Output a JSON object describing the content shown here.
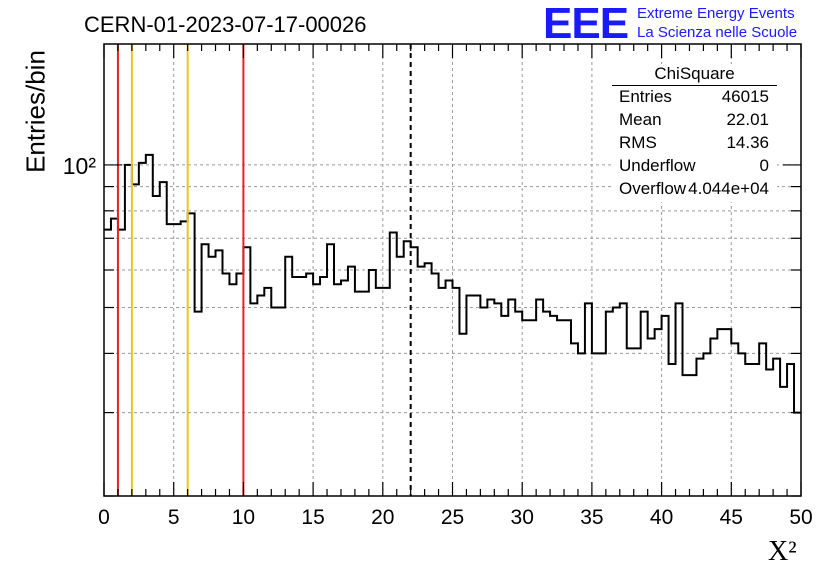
{
  "header": {
    "title": "CERN-01-2023-07-17-00026",
    "logo": "EEE",
    "logo_line1": "Extreme Energy Events",
    "logo_line2": "La Scienza nelle Scuole"
  },
  "stats_box": {
    "name": "ChiSquare",
    "rows": [
      {
        "label": "Entries",
        "value": "46015"
      },
      {
        "label": "Mean",
        "value": "22.01"
      },
      {
        "label": "RMS",
        "value": "14.36"
      },
      {
        "label": "Underflow",
        "value": "0"
      },
      {
        "label": "Overflow",
        "value": "4.044e+04"
      }
    ]
  },
  "colors": {
    "histogram": "#000000",
    "red_line": "#e8221b",
    "yellow_line": "#f2c020",
    "mean_line": "#000000",
    "grid": "#9a9a9a",
    "logo": "#1a1aff"
  },
  "chart_data": {
    "type": "bar",
    "style": "step-histogram",
    "xlabel": "X²",
    "ylabel": "Entries/bin",
    "xlim": [
      0,
      50
    ],
    "ylim": [
      20,
      180
    ],
    "ylog": true,
    "grid": true,
    "xticks": [
      "0",
      "5",
      "10",
      "15",
      "20",
      "25",
      "30",
      "35",
      "40",
      "45",
      "50"
    ],
    "ytick_label": "10²",
    "ytick_value": 100,
    "bin_width": 0.5,
    "values": [
      73,
      77,
      73,
      100,
      91,
      101,
      105,
      86,
      92,
      75,
      75,
      76,
      79,
      49,
      68,
      64,
      66,
      59,
      56,
      59,
      67,
      51,
      53,
      55,
      50,
      50,
      64,
      58,
      58,
      59,
      56,
      58,
      68,
      56,
      57,
      61,
      54,
      54,
      60,
      55,
      55,
      72,
      64,
      69,
      67,
      61,
      62,
      59,
      55,
      57,
      55,
      44,
      53,
      53,
      50,
      52,
      51,
      48,
      52,
      49,
      47,
      47,
      52,
      49,
      48,
      47,
      47,
      42,
      40,
      51,
      40,
      40,
      49,
      50,
      51,
      41,
      41,
      49,
      43,
      45,
      48,
      38,
      51,
      36,
      36,
      39,
      40,
      43,
      45,
      45,
      42,
      40,
      38,
      38,
      42,
      37,
      39,
      34,
      38,
      30
    ],
    "vlines": [
      {
        "x": 1,
        "color": "red"
      },
      {
        "x": 2,
        "color": "yellow"
      },
      {
        "x": 6,
        "color": "yellow"
      },
      {
        "x": 10,
        "color": "red"
      },
      {
        "x": 22,
        "color": "black-dashed"
      }
    ]
  }
}
